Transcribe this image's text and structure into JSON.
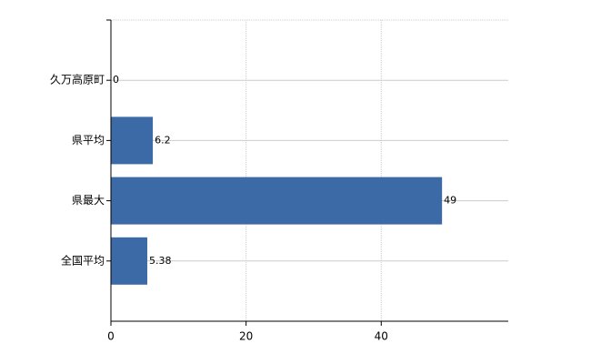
{
  "chart_data": {
    "type": "barh",
    "categories": [
      "久万高原町",
      "県平均",
      "県最大",
      "全国平均"
    ],
    "values": [
      0,
      6.2,
      49,
      5.38
    ],
    "color": "#3b6aa6",
    "xlim": [
      0,
      58.8
    ],
    "xticks": [
      0,
      20,
      40
    ],
    "grid": true
  }
}
